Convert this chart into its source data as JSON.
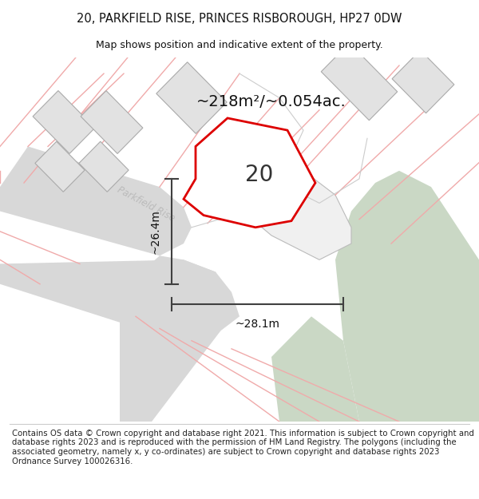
{
  "title_line1": "20, PARKFIELD RISE, PRINCES RISBOROUGH, HP27 0DW",
  "title_line2": "Map shows position and indicative extent of the property.",
  "footer_text": "Contains OS data © Crown copyright and database right 2021. This information is subject to Crown copyright and database rights 2023 and is reproduced with the permission of HM Land Registry. The polygons (including the associated geometry, namely x, y co-ordinates) are subject to Crown copyright and database rights 2023 Ordnance Survey 100026316.",
  "area_label": "~218m²/~0.054ac.",
  "property_number": "20",
  "dim_width": "~28.1m",
  "dim_height": "~26.4m",
  "road_label": "Parkfield Rise",
  "bg_color": "#ffffff",
  "map_bg": "#ffffff",
  "property_fill": "#ffffff",
  "property_edge": "#dd0000",
  "road_gray_fill": "#d0d0d0",
  "green_fill": "#cad8c5",
  "pink_line_color": "#f0aaaa",
  "gray_line_color": "#b0b0b0",
  "dim_line_color": "#404040",
  "title_fontsize": 10.5,
  "footer_fontsize": 7.5,
  "road_label_color": "#bbbbbb",
  "building_fill": "#e8e8e8",
  "note_line_color": "#cccccc"
}
